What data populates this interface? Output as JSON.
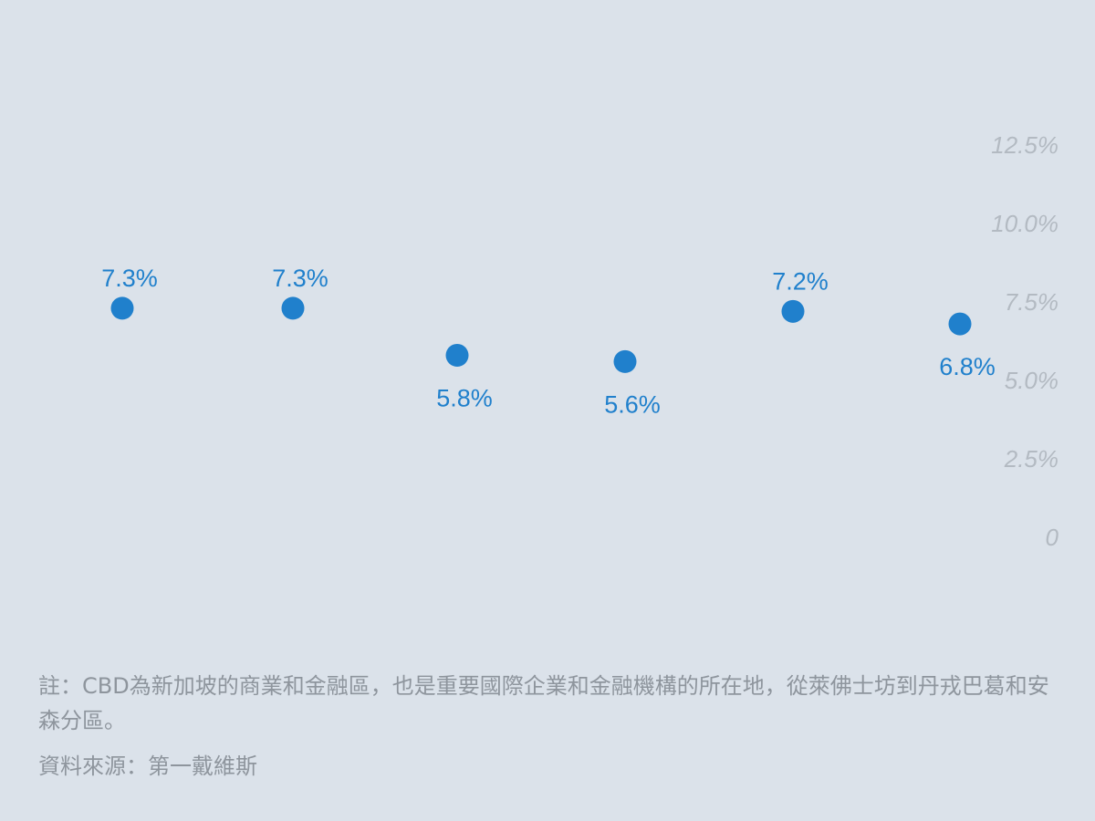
{
  "chart_data": {
    "type": "scatter",
    "categories": [
      "",
      "",
      "",
      "",
      "",
      ""
    ],
    "values": [
      7.3,
      7.3,
      5.8,
      5.6,
      7.2,
      6.8
    ],
    "data_labels": [
      "7.3%",
      "7.3%",
      "5.8%",
      "5.6%",
      "7.2%",
      "6.8%"
    ],
    "label_position": [
      "above",
      "above",
      "below",
      "below",
      "above",
      "below"
    ],
    "y_ticks": [
      0,
      2.5,
      5.0,
      7.5,
      10.0,
      12.5
    ],
    "y_tick_labels": [
      "0",
      "2.5%",
      "5.0%",
      "7.5%",
      "10.0%",
      "12.5%"
    ],
    "ylim": [
      0,
      12.5
    ],
    "y_axis_position": "right",
    "grid": false,
    "title": "",
    "xlabel": "",
    "ylabel": "",
    "marker_color": "#2080cc",
    "tick_color": "#b3bac2"
  },
  "footer": {
    "note": "註：CBD為新加坡的商業和金融區，也是重要國際企業和金融機構的所在地，從萊佛士坊到丹戎巴葛和安森分區。",
    "source": "資料來源：第一戴維斯"
  }
}
